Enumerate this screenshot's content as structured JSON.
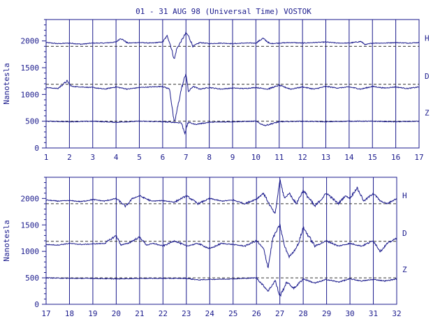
{
  "title": "01 - 31 AUG 98 (Universal Time) VOSTOK",
  "colors": {
    "ink": "#1a1a8c",
    "background": "#ffffff"
  },
  "chart_data": [
    {
      "type": "line",
      "ylabel": "Nanotesla",
      "ylim": [
        0,
        2400
      ],
      "yticks": [
        0,
        500,
        1000,
        1500,
        2000
      ],
      "xlim": [
        1,
        17
      ],
      "xticks": [
        1,
        2,
        3,
        4,
        5,
        6,
        7,
        8,
        9,
        10,
        11,
        12,
        13,
        14,
        15,
        16,
        17
      ],
      "grid": "vertical lines at each day",
      "series": [
        {
          "name": "H",
          "baseline": 1900,
          "x": [
            1,
            1.5,
            2,
            2.5,
            3,
            3.5,
            4,
            4.2,
            4.5,
            5,
            5.5,
            6,
            6.2,
            6.35,
            6.5,
            6.6,
            6.8,
            7,
            7.1,
            7.3,
            7.6,
            8,
            8.5,
            9,
            9.5,
            10,
            10.3,
            10.6,
            11,
            11.5,
            12,
            12.5,
            13,
            13.5,
            14,
            14.5,
            14.7,
            15,
            15.5,
            16,
            16.5,
            17
          ],
          "values": [
            1970,
            1950,
            1960,
            1940,
            1960,
            1960,
            1980,
            2050,
            1960,
            1970,
            1960,
            1980,
            2100,
            1900,
            1650,
            1850,
            2000,
            2150,
            2100,
            1900,
            1970,
            1950,
            1960,
            1950,
            1960,
            1960,
            2050,
            1950,
            1960,
            1970,
            1960,
            1970,
            1980,
            1960,
            1960,
            1990,
            1930,
            1960,
            1960,
            1970,
            1960,
            1970
          ]
        },
        {
          "name": "D",
          "baseline": 1190,
          "x": [
            1,
            1.5,
            1.9,
            2.1,
            2.5,
            3,
            3.5,
            4,
            4.5,
            5,
            5.5,
            6,
            6.3,
            6.5,
            6.8,
            7,
            7.1,
            7.3,
            7.6,
            8,
            8.5,
            9,
            9.5,
            10,
            10.5,
            11,
            11.5,
            12,
            12.5,
            13,
            13.5,
            14,
            14.5,
            15,
            15.5,
            16,
            16.5,
            17
          ],
          "values": [
            1130,
            1110,
            1250,
            1150,
            1140,
            1130,
            1100,
            1140,
            1100,
            1130,
            1140,
            1150,
            1100,
            450,
            1100,
            1400,
            1050,
            1150,
            1100,
            1130,
            1100,
            1120,
            1110,
            1130,
            1100,
            1170,
            1100,
            1140,
            1100,
            1150,
            1120,
            1140,
            1100,
            1150,
            1120,
            1140,
            1110,
            1140
          ]
        },
        {
          "name": "Z",
          "baseline": 500,
          "x": [
            1,
            2,
            3,
            4,
            5,
            6,
            6.8,
            6.95,
            7.1,
            7.4,
            8,
            9,
            10,
            10.2,
            10.4,
            11,
            12,
            13,
            14,
            15,
            16,
            17
          ],
          "values": [
            500,
            490,
            500,
            480,
            500,
            490,
            470,
            280,
            480,
            440,
            480,
            490,
            500,
            450,
            420,
            490,
            500,
            490,
            500,
            500,
            490,
            500
          ]
        }
      ]
    },
    {
      "type": "line",
      "ylabel": "Nanotesla",
      "ylim": [
        0,
        2400
      ],
      "yticks": [
        0,
        500,
        1000,
        1500,
        2000
      ],
      "xlim": [
        17,
        32
      ],
      "xticks": [
        17,
        18,
        19,
        20,
        21,
        22,
        23,
        24,
        25,
        26,
        27,
        28,
        29,
        30,
        31,
        32
      ],
      "grid": "vertical lines at each day",
      "series": [
        {
          "name": "H",
          "baseline": 1900,
          "x": [
            17,
            17.5,
            18,
            18.5,
            19,
            19.5,
            20,
            20.4,
            20.7,
            21,
            21.5,
            22,
            22.5,
            23,
            23.5,
            24,
            24.5,
            25,
            25.5,
            26,
            26.3,
            26.6,
            26.8,
            27,
            27.2,
            27.4,
            27.7,
            28,
            28.5,
            29,
            29.5,
            29.8,
            30,
            30.3,
            30.6,
            31,
            31.3,
            31.6,
            32
          ],
          "values": [
            1970,
            1950,
            1960,
            1940,
            1980,
            1950,
            2000,
            1850,
            2000,
            2050,
            1950,
            1960,
            1930,
            2050,
            1900,
            2000,
            1950,
            1970,
            1900,
            1990,
            2100,
            1850,
            1700,
            2350,
            2000,
            2100,
            1900,
            2150,
            1850,
            2100,
            1900,
            2050,
            2000,
            2200,
            1950,
            2100,
            1950,
            1900,
            2000
          ]
        },
        {
          "name": "D",
          "baseline": 1190,
          "x": [
            17,
            17.5,
            18,
            18.5,
            19,
            19.5,
            20,
            20.2,
            20.5,
            21,
            21.3,
            21.6,
            22,
            22.5,
            23,
            23.5,
            24,
            24.5,
            25,
            25.5,
            26,
            26.3,
            26.5,
            26.7,
            27,
            27.2,
            27.4,
            27.6,
            27.8,
            28,
            28.5,
            29,
            29.5,
            30,
            30.5,
            31,
            31.3,
            31.6,
            32
          ],
          "values": [
            1130,
            1120,
            1150,
            1130,
            1140,
            1150,
            1300,
            1120,
            1150,
            1270,
            1120,
            1150,
            1100,
            1200,
            1100,
            1150,
            1050,
            1150,
            1130,
            1100,
            1200,
            1050,
            700,
            1250,
            1500,
            1100,
            900,
            1000,
            1150,
            1450,
            1100,
            1200,
            1100,
            1150,
            1100,
            1200,
            1000,
            1150,
            1250
          ]
        },
        {
          "name": "Z",
          "baseline": 500,
          "x": [
            17,
            18,
            19,
            20,
            21,
            22,
            23,
            23.5,
            24,
            25,
            26,
            26.3,
            26.5,
            26.8,
            27,
            27.3,
            27.6,
            28,
            28.5,
            29,
            29.5,
            30,
            30.5,
            31,
            31.5,
            32
          ],
          "values": [
            500,
            490,
            490,
            480,
            490,
            490,
            490,
            460,
            470,
            480,
            500,
            350,
            250,
            450,
            150,
            420,
            300,
            480,
            400,
            470,
            420,
            480,
            440,
            470,
            440,
            480
          ]
        }
      ]
    }
  ]
}
